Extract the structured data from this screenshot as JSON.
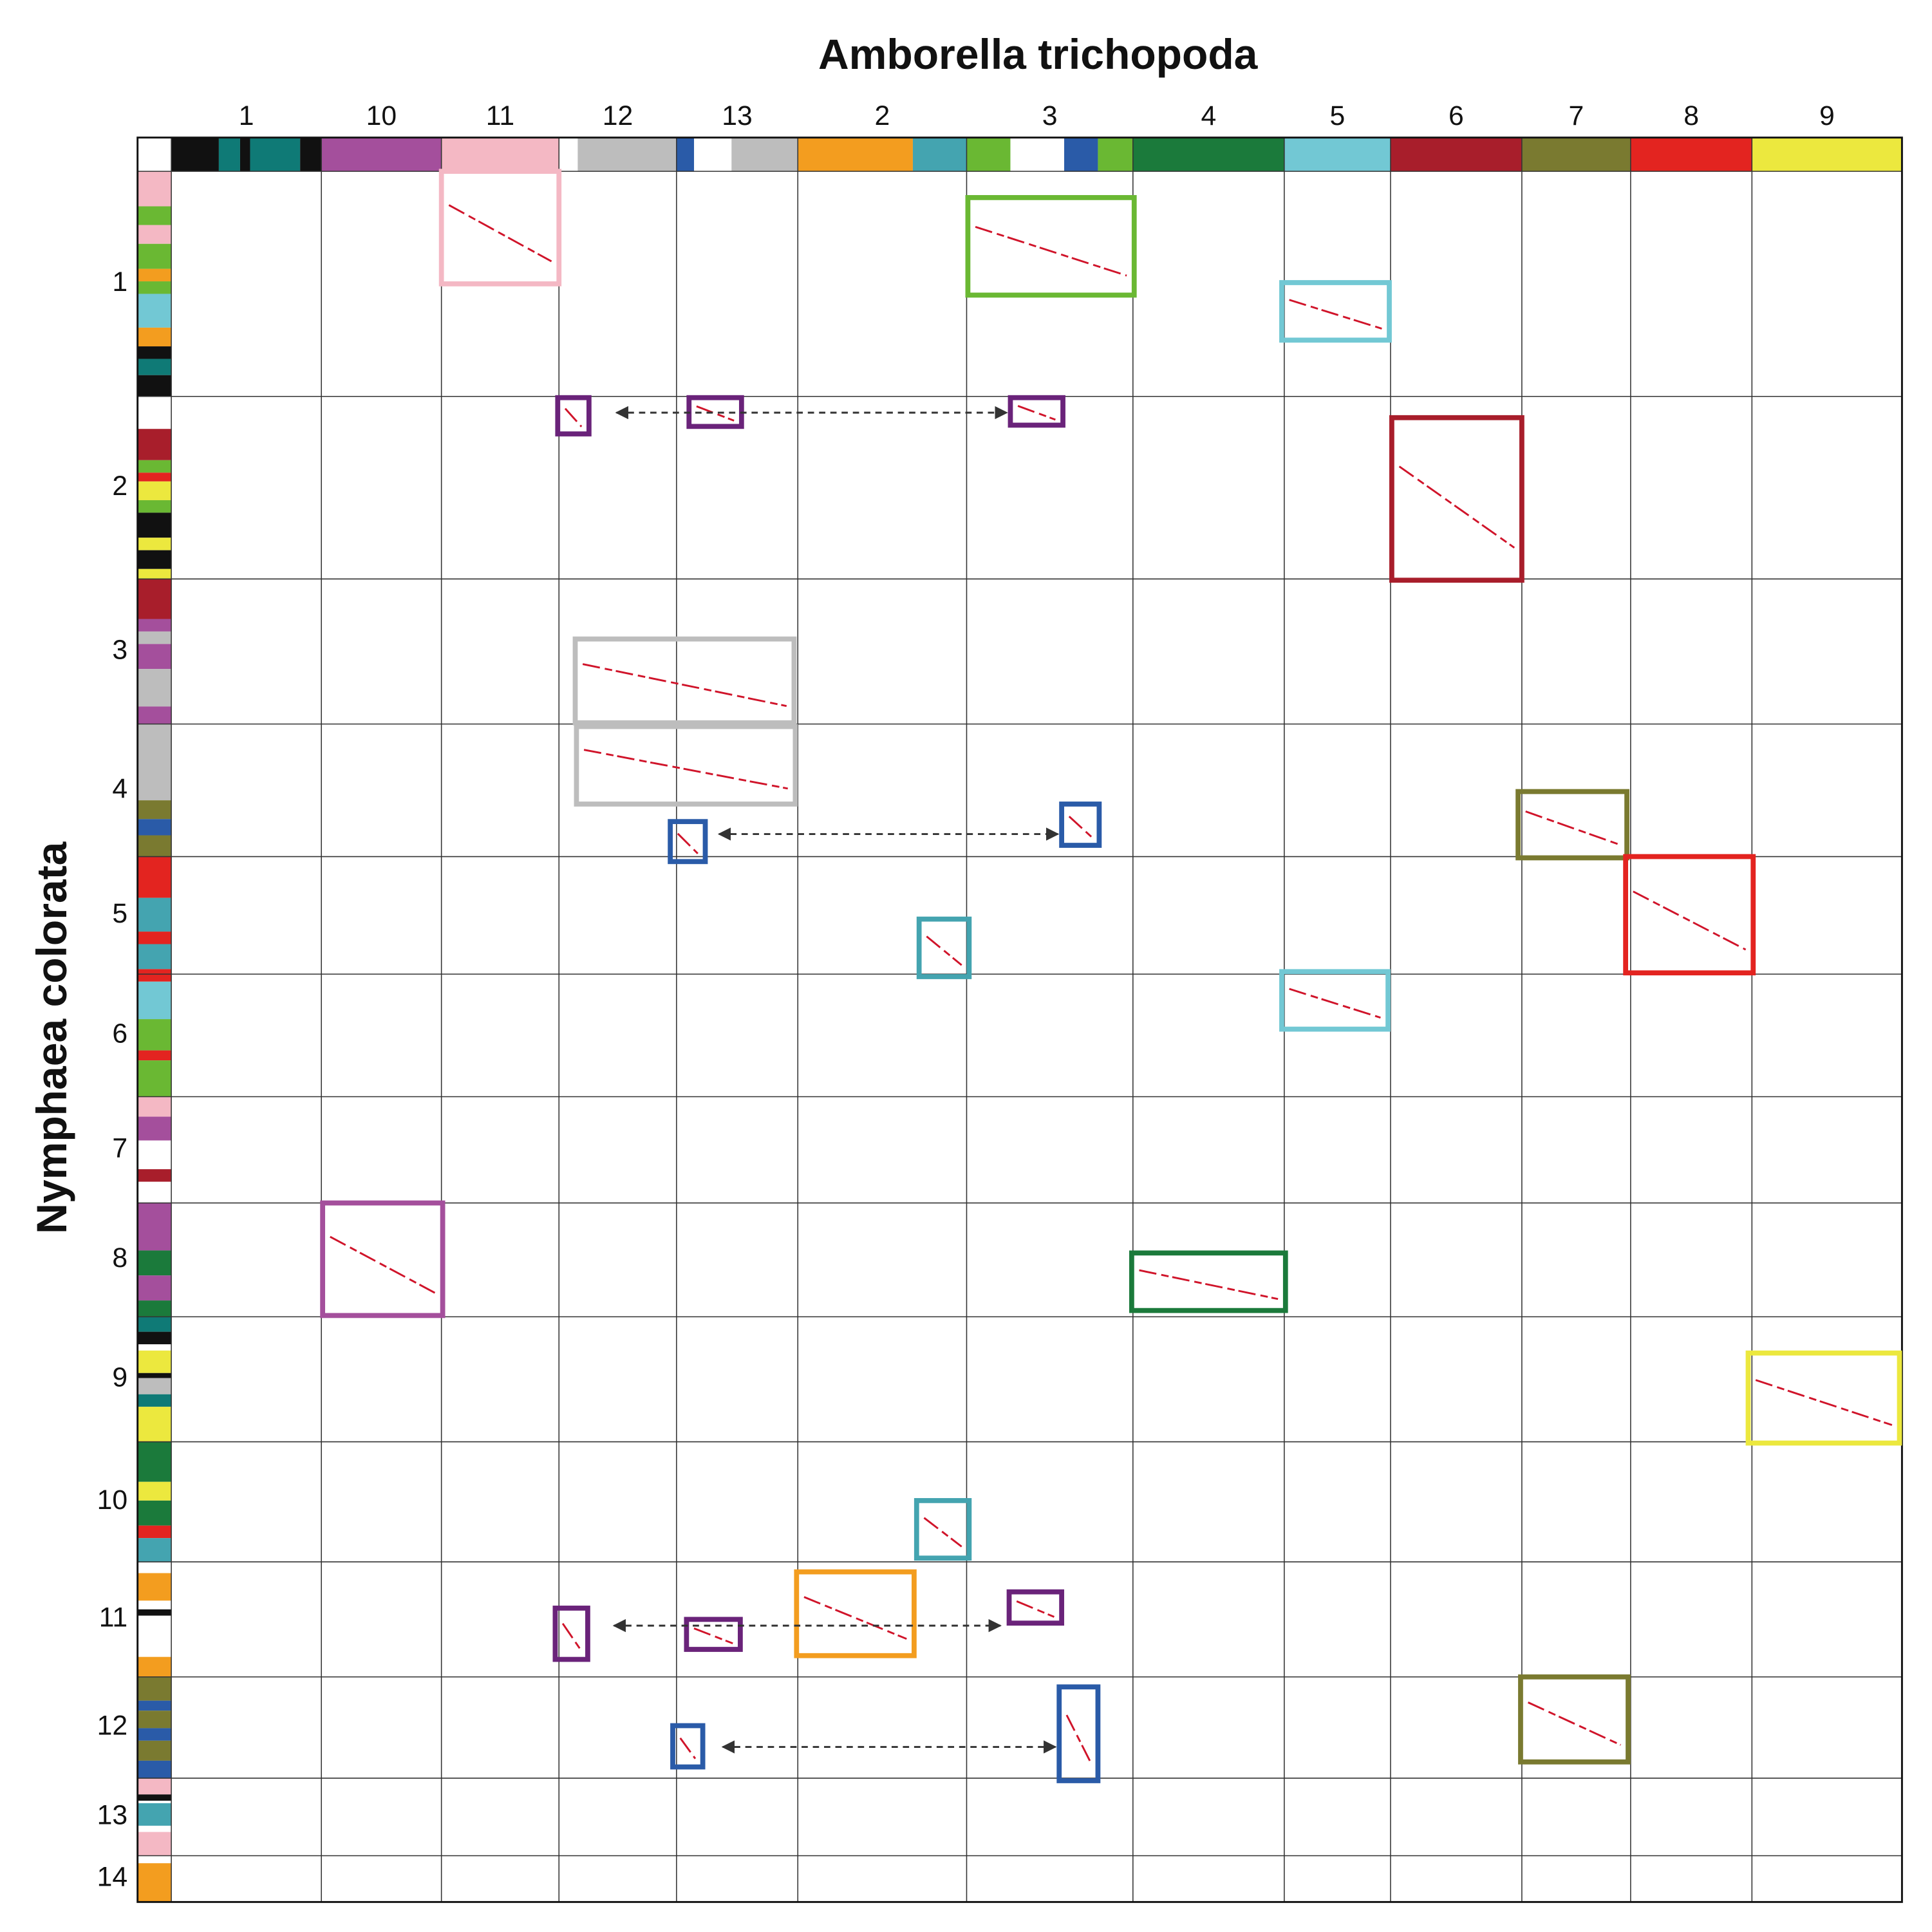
{
  "x_title": "Amborella trichopoda",
  "y_title": "Nymphaea colorata",
  "columns": [
    "1",
    "10",
    "11",
    "12",
    "13",
    "2",
    "3",
    "4",
    "5",
    "6",
    "7",
    "8",
    "9"
  ],
  "rows": [
    "1",
    "2",
    "3",
    "4",
    "5",
    "6",
    "7",
    "8",
    "9",
    "10",
    "11",
    "12",
    "13",
    "14"
  ]
}
